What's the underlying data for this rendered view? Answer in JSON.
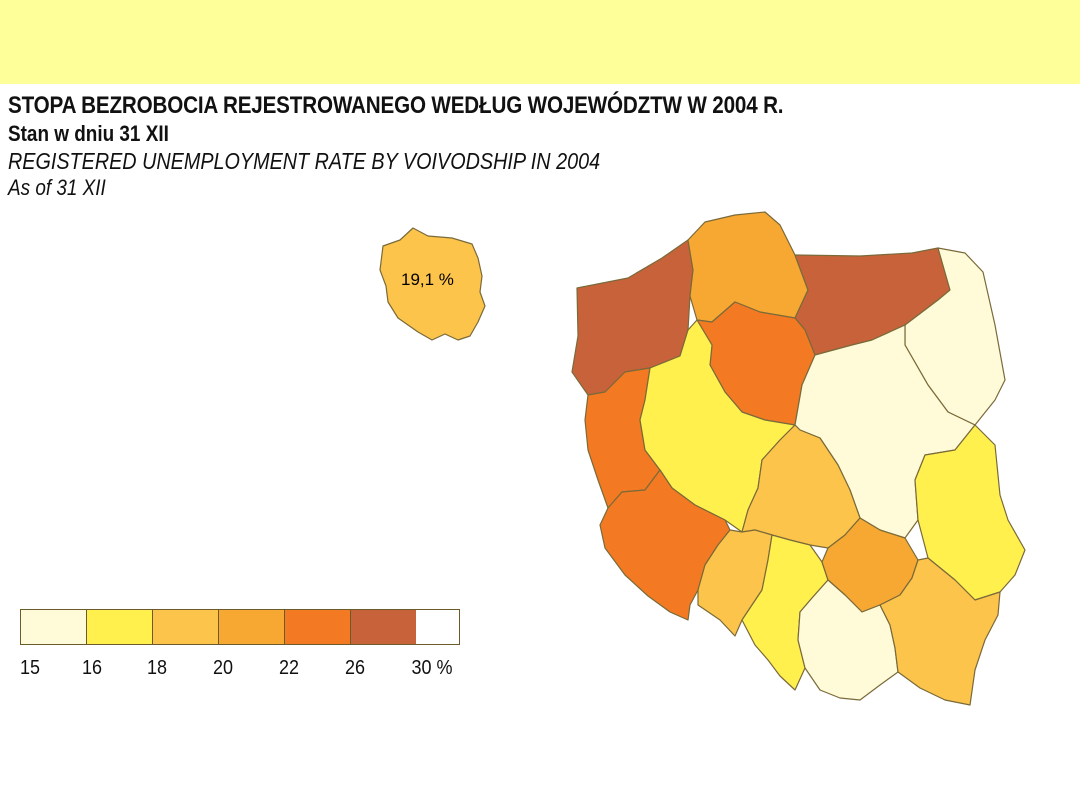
{
  "header": {
    "title_pl": "STOPA BEZROBOCIA REJESTROWANEGO WEDŁUG WOJEWÓDZTW W 2004 R.",
    "subtitle_pl": "Stan w dniu 31 XII",
    "title_en": "REGISTERED UNEMPLOYMENT RATE BY VOIVODSHIP IN 2004",
    "subtitle_en": "As of 31 XII",
    "band_color": "#ffff99"
  },
  "inset": {
    "label": "19,1 %",
    "color": "#fcc44a"
  },
  "legend": {
    "ticks": [
      "15",
      "16",
      "18",
      "20",
      "22",
      "26",
      "30 %"
    ],
    "colors": [
      "#fffad8",
      "#fff04e",
      "#fcc44a",
      "#f7a832",
      "#f37a22",
      "#c8623a"
    ]
  },
  "regions": [
    {
      "id": "zachodniopomorskie",
      "class": 5
    },
    {
      "id": "pomorskie",
      "class": 3
    },
    {
      "id": "warminsko-mazurskie",
      "class": 5
    },
    {
      "id": "podlaskie",
      "class": 0
    },
    {
      "id": "kujawsko-pomorskie",
      "class": 4
    },
    {
      "id": "lubuskie",
      "class": 4
    },
    {
      "id": "wielkopolskie",
      "class": 1
    },
    {
      "id": "mazowieckie",
      "class": 0
    },
    {
      "id": "lodzkie",
      "class": 2
    },
    {
      "id": "lubelskie",
      "class": 1
    },
    {
      "id": "dolnoslaskie",
      "class": 4
    },
    {
      "id": "opolskie",
      "class": 2
    },
    {
      "id": "slaskie",
      "class": 1
    },
    {
      "id": "swietokrzyskie",
      "class": 3
    },
    {
      "id": "malopolskie",
      "class": 0
    },
    {
      "id": "podkarpackie",
      "class": 2
    }
  ]
}
